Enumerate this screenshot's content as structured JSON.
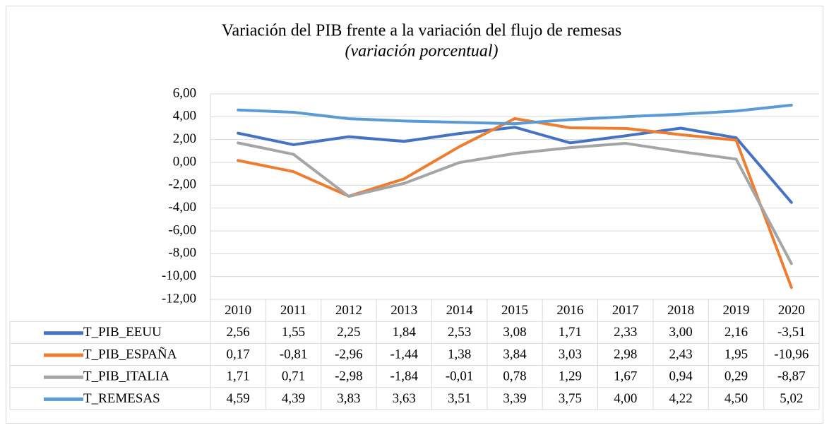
{
  "chart_data": {
    "type": "line",
    "title": "Variación del PIB frente a la variación del flujo de remesas",
    "subtitle": "(variación porcentual)",
    "categories": [
      "2010",
      "2011",
      "2012",
      "2013",
      "2014",
      "2015",
      "2016",
      "2017",
      "2018",
      "2019",
      "2020"
    ],
    "series": [
      {
        "name": "T_PIB_EEUU",
        "color": "#4472c4",
        "values": [
          2.56,
          1.55,
          2.25,
          1.84,
          2.53,
          3.08,
          1.71,
          2.33,
          3.0,
          2.16,
          -3.51
        ],
        "value_labels": [
          "2,56",
          "1,55",
          "2,25",
          "1,84",
          "2,53",
          "3,08",
          "1,71",
          "2,33",
          "3,00",
          "2,16",
          "-3,51"
        ]
      },
      {
        "name": "T_PIB_ESPAÑA",
        "color": "#ed7d31",
        "values": [
          0.17,
          -0.81,
          -2.96,
          -1.44,
          1.38,
          3.84,
          3.03,
          2.98,
          2.43,
          1.95,
          -10.96
        ],
        "value_labels": [
          "0,17",
          "-0,81",
          "-2,96",
          "-1,44",
          "1,38",
          "3,84",
          "3,03",
          "2,98",
          "2,43",
          "1,95",
          "-10,96"
        ]
      },
      {
        "name": "T_PIB_ITALIA",
        "color": "#a5a5a5",
        "values": [
          1.71,
          0.71,
          -2.98,
          -1.84,
          -0.01,
          0.78,
          1.29,
          1.67,
          0.94,
          0.29,
          -8.87
        ],
        "value_labels": [
          "1,71",
          "0,71",
          "-2,98",
          "-1,84",
          "-0,01",
          "0,78",
          "1,29",
          "1,67",
          "0,94",
          "0,29",
          "-8,87"
        ]
      },
      {
        "name": "T_REMESAS",
        "color": "#5b9bd5",
        "values": [
          4.59,
          4.39,
          3.83,
          3.63,
          3.51,
          3.39,
          3.75,
          4.0,
          4.22,
          4.5,
          5.02
        ],
        "value_labels": [
          "4,59",
          "4,39",
          "3,83",
          "3,63",
          "3,51",
          "3,39",
          "3,75",
          "4,00",
          "4,22",
          "4,50",
          "5,02"
        ]
      }
    ],
    "ylim": [
      -12,
      6
    ],
    "yticks": [
      {
        "value": 6,
        "label": "6,00"
      },
      {
        "value": 4,
        "label": "4,00"
      },
      {
        "value": 2,
        "label": "2,00"
      },
      {
        "value": 0,
        "label": "0,00"
      },
      {
        "value": -2,
        "label": "-2,00"
      },
      {
        "value": -4,
        "label": "-4,00"
      },
      {
        "value": -6,
        "label": "-6,00"
      },
      {
        "value": -8,
        "label": "-8,00"
      },
      {
        "value": -10,
        "label": "-10,00"
      },
      {
        "value": -12,
        "label": "-12,00"
      }
    ],
    "grid": true
  }
}
